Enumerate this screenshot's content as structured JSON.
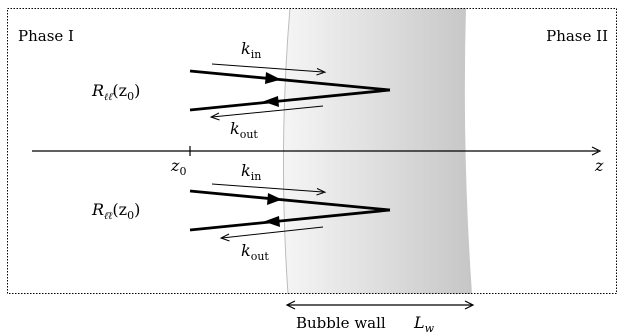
{
  "phases": {
    "left": "Phase I",
    "right": "Phase II"
  },
  "reflection_upper": {
    "label_main": "R",
    "label_sub": "ℓℓ̄",
    "label_arg": "(z",
    "label_arg_sub": "0",
    "label_close": ")"
  },
  "reflection_lower": {
    "label_main": "R",
    "label_sub": "ℓ̄ℓ",
    "label_arg": "(z",
    "label_arg_sub": "0",
    "label_close": ")"
  },
  "momentum": {
    "k": "k",
    "in_sub": "in",
    "out_sub": "out"
  },
  "axis": {
    "label": "z",
    "origin_main": "z",
    "origin_sub": "0"
  },
  "wall": {
    "caption": "Bubble wall",
    "width_main": "L",
    "width_sub": "w"
  },
  "colors": {
    "wall_light": "#f4f4f4",
    "wall_dark": "#c8c8c8",
    "lines": "#000000"
  }
}
